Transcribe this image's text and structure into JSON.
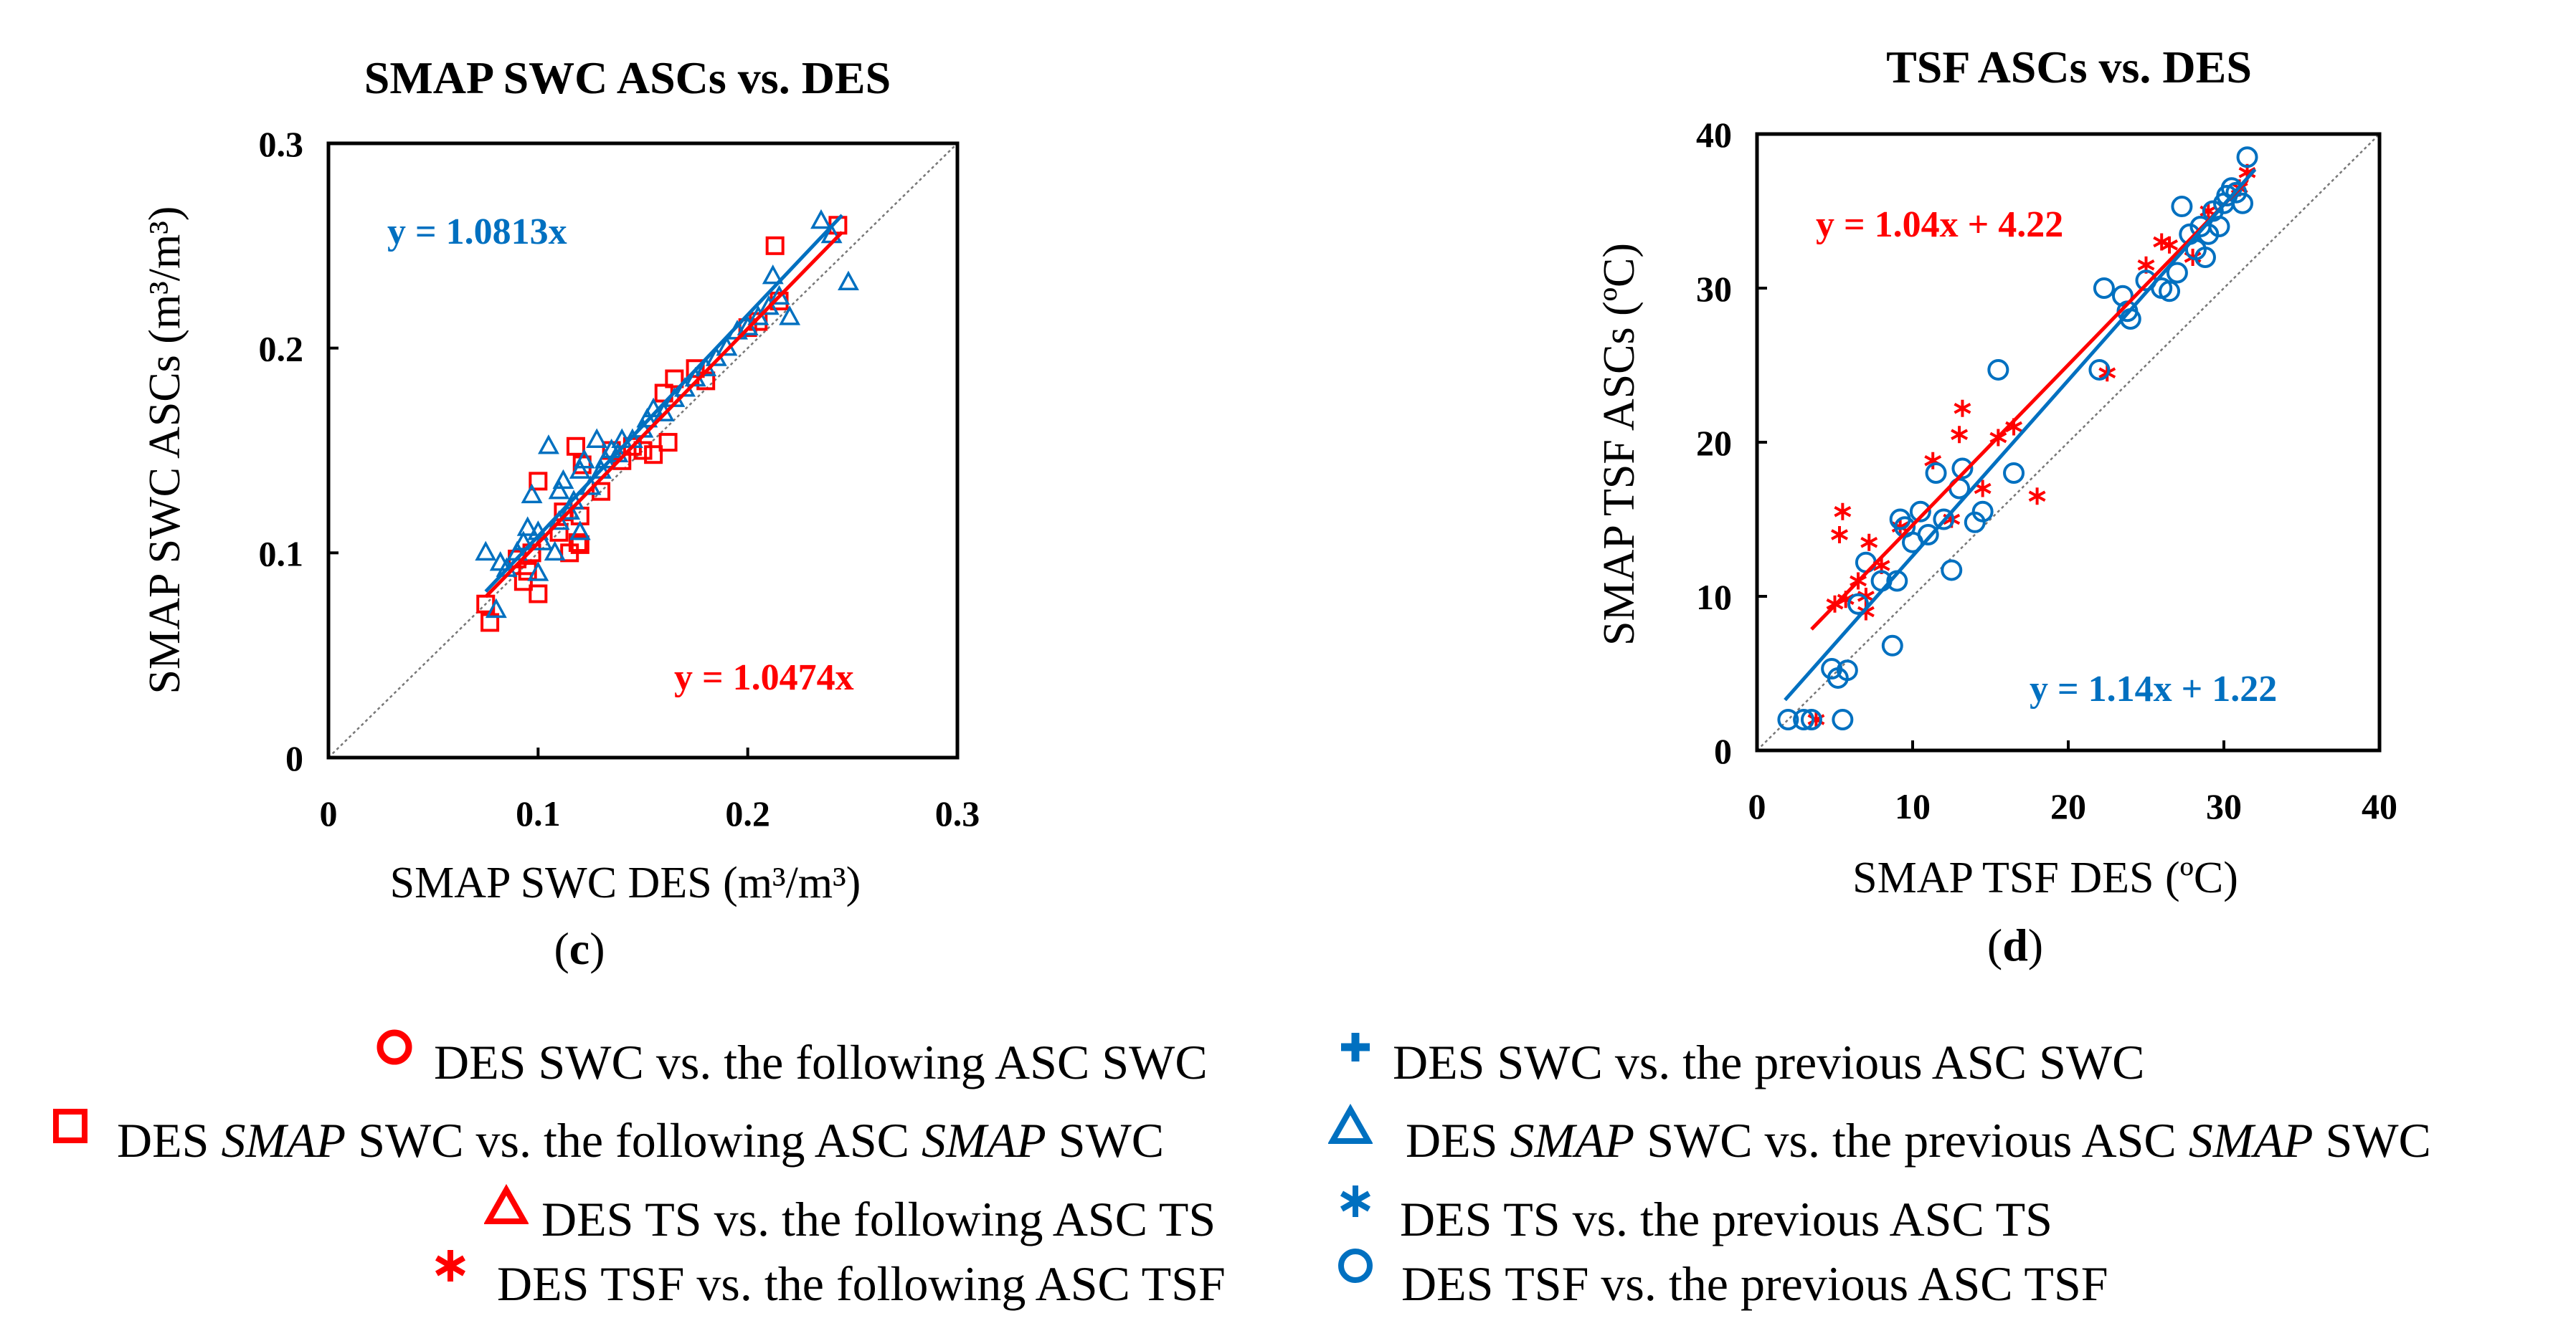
{
  "chart_data": [
    {
      "id": "c",
      "type": "scatter",
      "title": "SMAP SWC ASCs vs. DES",
      "xlabel": "SMAP SWC DES (m³/m³)",
      "ylabel": "SMAP SWC ASCs (m³/m³)",
      "panel_label": "c",
      "xlim": [
        0,
        0.3
      ],
      "ylim": [
        0,
        0.3
      ],
      "xticks": [
        "0",
        "0.1",
        "0.2",
        "0.3"
      ],
      "yticks": [
        "0",
        "0.1",
        "0.2",
        "0.3"
      ],
      "reference_line": "1:1",
      "series": [
        {
          "name": "DES SMAP SWC vs. the following ASC SMAP SWC",
          "marker": "square",
          "color": "#ff0000",
          "x": [
            0.075,
            0.077,
            0.09,
            0.093,
            0.095,
            0.097,
            0.1,
            0.1,
            0.11,
            0.112,
            0.115,
            0.118,
            0.119,
            0.12,
            0.12,
            0.121,
            0.13,
            0.135,
            0.14,
            0.145,
            0.15,
            0.155,
            0.16,
            0.162,
            0.165,
            0.175,
            0.18,
            0.2,
            0.205,
            0.213,
            0.215,
            0.243
          ],
          "y": [
            0.075,
            0.066,
            0.097,
            0.086,
            0.091,
            0.1,
            0.08,
            0.135,
            0.11,
            0.12,
            0.1,
            0.152,
            0.105,
            0.104,
            0.118,
            0.143,
            0.13,
            0.15,
            0.145,
            0.152,
            0.15,
            0.148,
            0.178,
            0.154,
            0.185,
            0.19,
            0.184,
            0.21,
            0.213,
            0.25,
            0.223,
            0.26
          ]
        },
        {
          "name": "DES SMAP SWC vs. the previous ASC SMAP SWC",
          "marker": "triangle",
          "color": "#0070c0",
          "x": [
            0.075,
            0.08,
            0.082,
            0.085,
            0.09,
            0.093,
            0.095,
            0.097,
            0.1,
            0.1,
            0.102,
            0.105,
            0.108,
            0.11,
            0.11,
            0.112,
            0.115,
            0.117,
            0.12,
            0.12,
            0.122,
            0.125,
            0.128,
            0.13,
            0.132,
            0.135,
            0.138,
            0.14,
            0.145,
            0.15,
            0.152,
            0.155,
            0.16,
            0.165,
            0.17,
            0.175,
            0.18,
            0.185,
            0.19,
            0.195,
            0.2,
            0.205,
            0.21,
            0.212,
            0.215,
            0.22,
            0.235,
            0.24,
            0.248
          ],
          "y": [
            0.1,
            0.072,
            0.095,
            0.092,
            0.1,
            0.105,
            0.112,
            0.128,
            0.09,
            0.11,
            0.105,
            0.152,
            0.1,
            0.115,
            0.13,
            0.135,
            0.12,
            0.125,
            0.11,
            0.14,
            0.145,
            0.132,
            0.155,
            0.14,
            0.145,
            0.15,
            0.148,
            0.155,
            0.155,
            0.16,
            0.165,
            0.17,
            0.168,
            0.175,
            0.18,
            0.185,
            0.19,
            0.195,
            0.2,
            0.208,
            0.21,
            0.215,
            0.22,
            0.235,
            0.225,
            0.215,
            0.262,
            0.255,
            0.232
          ]
        }
      ],
      "fits": [
        {
          "label": "y = 1.0813x",
          "slope": 1.0813,
          "intercept": 0,
          "color": "#0070c0",
          "x_range": [
            0.075,
            0.245
          ]
        },
        {
          "label": "y = 1.0474x",
          "slope": 1.0474,
          "intercept": 0,
          "color": "#ff0000",
          "x_range": [
            0.075,
            0.245
          ]
        }
      ]
    },
    {
      "id": "d",
      "type": "scatter",
      "title": "TSF ASCs vs. DES",
      "xlabel": "SMAP TSF DES (ºC)",
      "ylabel": "SMAP TSF ASCs (ºC)",
      "panel_label": "d",
      "xlim": [
        0,
        40
      ],
      "ylim": [
        0,
        40
      ],
      "xticks": [
        "0",
        "10",
        "20",
        "30",
        "40"
      ],
      "yticks": [
        "0",
        "10",
        "20",
        "30",
        "40"
      ],
      "reference_line": "1:1",
      "series": [
        {
          "name": "DES TSF vs. the following ASC TSF",
          "marker": "asterisk",
          "color": "#ff0000",
          "x": [
            3.8,
            5,
            5.3,
            5.5,
            5.7,
            6.5,
            7,
            7,
            7.2,
            8,
            9.2,
            11.3,
            12.5,
            13,
            13.2,
            14.5,
            15.5,
            16.5,
            18,
            22.5,
            25,
            26,
            26.5,
            28,
            29,
            31,
            31.5
          ],
          "y": [
            2,
            9.5,
            14,
            15.5,
            9.8,
            11,
            9,
            10,
            13.5,
            12,
            14.5,
            18.8,
            15,
            20.5,
            22.2,
            17,
            20.3,
            21,
            16.5,
            24.5,
            31.5,
            33,
            32.8,
            32,
            35,
            36.5,
            37.5
          ]
        },
        {
          "name": "DES TSF vs. the previous ASC TSF",
          "marker": "circle",
          "color": "#0070c0",
          "x": [
            2,
            3,
            3.5,
            4.8,
            5.2,
            5.8,
            5.5,
            6.5,
            7,
            8,
            8.7,
            9,
            9.2,
            9.5,
            10,
            10.5,
            11,
            11.5,
            12,
            12.5,
            13,
            13.2,
            14,
            14.5,
            15.5,
            16.5,
            22,
            22.3,
            23.5,
            23.8,
            24,
            25,
            26,
            26.5,
            27,
            27.3,
            27.8,
            28.2,
            28.5,
            28.8,
            29,
            29.3,
            29.7,
            30,
            30.2,
            30.5,
            30.8,
            31.2,
            31.5
          ],
          "y": [
            2,
            2,
            2,
            5.3,
            4.7,
            5.2,
            2,
            9.5,
            12.2,
            11,
            6.8,
            11,
            15,
            14.5,
            13.5,
            15.5,
            14,
            18,
            15,
            11.7,
            17,
            18.3,
            14.8,
            15.5,
            24.7,
            18,
            24.7,
            30,
            29.5,
            28.5,
            28,
            30.5,
            30,
            29.8,
            31,
            35.3,
            33.5,
            32.5,
            34,
            32,
            33.5,
            35,
            34,
            35.5,
            36,
            36.5,
            36.2,
            35.5,
            38.5
          ]
        }
      ],
      "fits": [
        {
          "label": "y = 1.04x + 4.22",
          "slope": 1.04,
          "intercept": 4.22,
          "color": "#ff0000",
          "x_range": [
            3.5,
            31.5
          ]
        },
        {
          "label": "y = 1.14x + 1.22",
          "slope": 1.14,
          "intercept": 1.22,
          "color": "#0070c0",
          "x_range": [
            1.8,
            32
          ]
        }
      ]
    }
  ],
  "legend": {
    "items": [
      {
        "marker": "circle",
        "color": "#ff0000",
        "text": "DES SWC vs. the following ASC SWC"
      },
      {
        "marker": "plus",
        "color": "#0070c0",
        "text": "DES SWC vs. the previous ASC SWC"
      },
      {
        "marker": "square",
        "color": "#ff0000",
        "text_parts": [
          "DES ",
          "SMAP",
          " SWC vs. the following ASC ",
          "SMAP",
          " SWC"
        ]
      },
      {
        "marker": "triangle",
        "color": "#0070c0",
        "text_parts": [
          "DES ",
          "SMAP",
          " SWC vs. the previous ASC ",
          "SMAP",
          " SWC"
        ]
      },
      {
        "marker": "triangle",
        "color": "#ff0000",
        "text": "DES TS vs. the following ASC TS"
      },
      {
        "marker": "asterisk",
        "color": "#0070c0",
        "text": "DES TS vs. the previous ASC TS"
      },
      {
        "marker": "asterisk",
        "color": "#ff0000",
        "text": "DES TSF vs. the following ASC TSF"
      },
      {
        "marker": "circle",
        "color": "#0070c0",
        "text": "DES TSF vs. the previous ASC TSF"
      }
    ]
  }
}
